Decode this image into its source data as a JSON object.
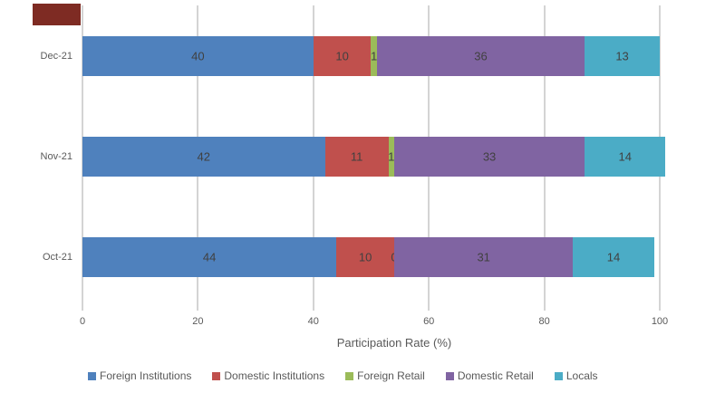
{
  "chart_data": {
    "type": "bar",
    "orientation": "horizontal",
    "stacked": true,
    "title": "",
    "xlabel": "Participation Rate (%)",
    "categories": [
      "Dec-21",
      "Nov-21",
      "Oct-21"
    ],
    "series": [
      {
        "name": "Foreign Institutions",
        "color": "#4F81BD",
        "values": [
          40,
          42,
          44
        ]
      },
      {
        "name": "Domestic Institutions",
        "color": "#C0504D",
        "values": [
          10,
          11,
          10
        ]
      },
      {
        "name": "Foreign Retail",
        "color": "#9BBB59",
        "values": [
          1,
          1,
          0
        ]
      },
      {
        "name": "Domestic Retail",
        "color": "#8064A2",
        "values": [
          36,
          33,
          31
        ]
      },
      {
        "name": "Locals",
        "color": "#4BACC6",
        "values": [
          13,
          14,
          14
        ]
      }
    ],
    "x_ticks": [
      "0",
      "20",
      "40",
      "60",
      "80",
      "100"
    ],
    "xlim": [
      0,
      100
    ],
    "grid": true,
    "legend_position": "bottom",
    "data_labels": true
  },
  "styles": {
    "gridline_color": "#D4D4D4",
    "axis_label_color": "#595959",
    "data_label_color": "#404040",
    "legend_text_color": "#595959",
    "artifact_color": "#7E2B23"
  }
}
